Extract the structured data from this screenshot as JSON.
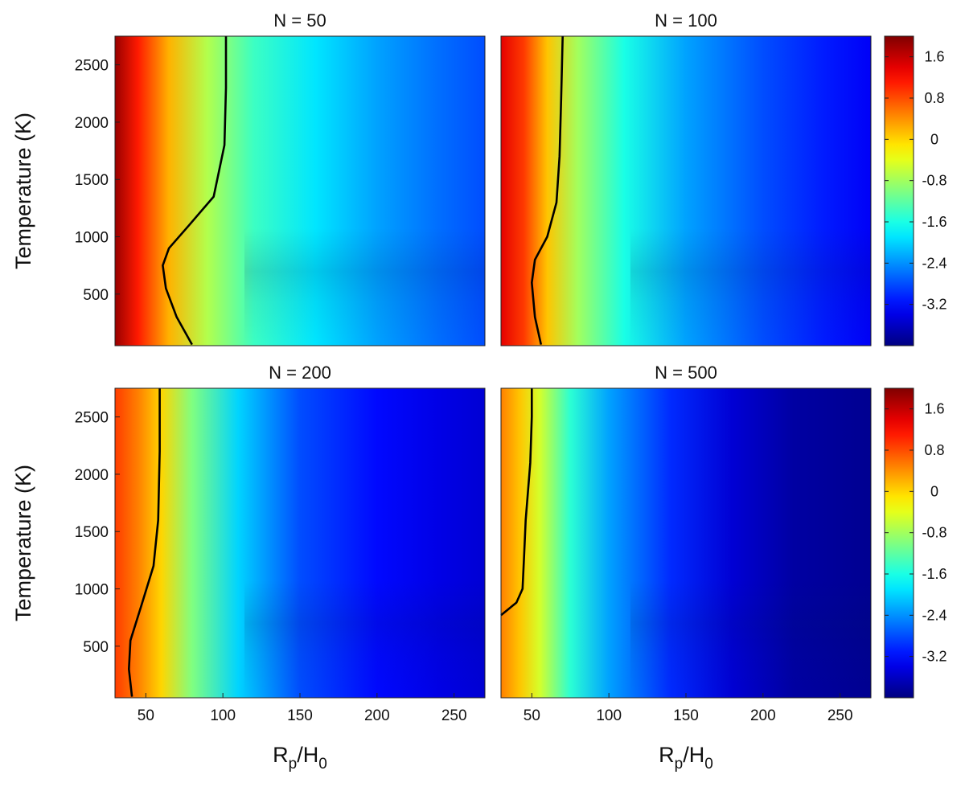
{
  "chart_data": {
    "type": "heatmap",
    "xlabel": "Rp/H0",
    "ylabel": "Temperature (K)",
    "xlim": [
      30,
      270
    ],
    "ylim": [
      50,
      2750
    ],
    "xticks": [
      50,
      100,
      150,
      200,
      250
    ],
    "yticks": [
      500,
      1000,
      1500,
      2000,
      2500
    ],
    "colorbar": {
      "range": [
        -4.0,
        2.0
      ],
      "ticks": [
        "1.6",
        "0.8",
        "0",
        "-0.8",
        "-1.6",
        "-2.4",
        "-3.2"
      ],
      "tick_values": [
        1.6,
        0.8,
        0,
        -0.8,
        -1.6,
        -2.4,
        -3.2
      ],
      "colormap": "jet"
    },
    "grid": false,
    "panels": [
      {
        "title": "N = 50",
        "value_profile": {
          "x": [
            30,
            45,
            65,
            90,
            120,
            160,
            200,
            240,
            270
          ],
          "v": [
            1.85,
            1.1,
            0.2,
            -0.7,
            -1.4,
            -1.9,
            -2.3,
            -2.6,
            -2.8
          ]
        },
        "contour": {
          "level": 0,
          "x": [
            80,
            70,
            63,
            61,
            65,
            78,
            94,
            101,
            102,
            102
          ],
          "y": [
            60,
            300,
            550,
            750,
            900,
            1100,
            1350,
            1800,
            2300,
            2750
          ]
        }
      },
      {
        "title": "N = 100",
        "value_profile": {
          "x": [
            30,
            45,
            60,
            80,
            110,
            150,
            200,
            240,
            270
          ],
          "v": [
            1.4,
            0.9,
            0.1,
            -0.8,
            -1.6,
            -2.3,
            -2.8,
            -3.1,
            -3.3
          ]
        },
        "contour": {
          "level": 0,
          "x": [
            56,
            52,
            50,
            52,
            60,
            66,
            68,
            69,
            70
          ],
          "y": [
            60,
            300,
            600,
            800,
            1000,
            1300,
            1700,
            2200,
            2750
          ]
        }
      },
      {
        "title": "N = 200",
        "value_profile": {
          "x": [
            30,
            45,
            60,
            80,
            110,
            150,
            200,
            240,
            270
          ],
          "v": [
            0.9,
            0.5,
            0.0,
            -1.0,
            -2.0,
            -2.8,
            -3.2,
            -3.4,
            -3.5
          ]
        },
        "contour": {
          "level": 0,
          "x": [
            41,
            39,
            40,
            47,
            55,
            58,
            59,
            59
          ],
          "y": [
            60,
            300,
            550,
            850,
            1200,
            1600,
            2200,
            2750
          ]
        }
      },
      {
        "title": "N = 500",
        "value_profile": {
          "x": [
            30,
            42,
            55,
            75,
            100,
            140,
            180,
            220,
            270
          ],
          "v": [
            0.5,
            0.1,
            -0.5,
            -1.5,
            -2.3,
            -3.0,
            -3.5,
            -3.8,
            -3.9
          ]
        },
        "contour": {
          "level": 0,
          "x": [
            30,
            40,
            44,
            45,
            46,
            49,
            50,
            50
          ],
          "y": [
            770,
            880,
            1000,
            1300,
            1600,
            2100,
            2500,
            2750
          ]
        }
      }
    ]
  }
}
